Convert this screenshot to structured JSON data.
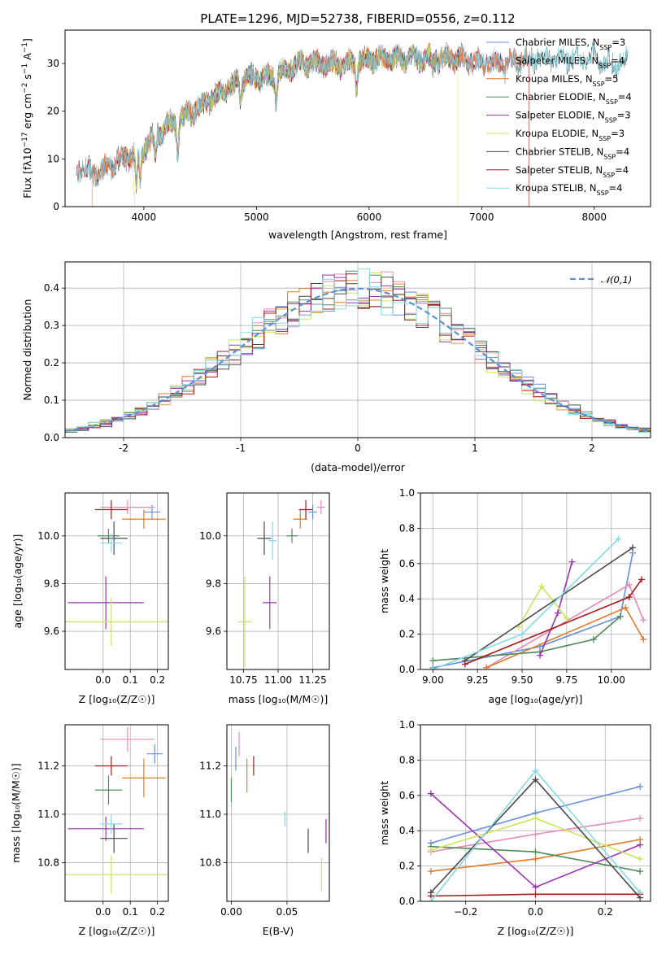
{
  "figure": {
    "title": "PLATE=1296, MJD=52738, FIBERID=0556, z=0.112"
  },
  "colors": {
    "Chabrier MILES": "#6a8fd8",
    "Salpeter MILES": "#e68ab8",
    "Kroupa MILES": "#e07b28",
    "Chabrier ELODIE": "#4f8a5a",
    "Salpeter ELODIE": "#9b35b0",
    "Kroupa ELODIE": "#cde35a",
    "Chabrier STELIB": "#4a4a4a",
    "Salpeter STELIB": "#a8191b",
    "Kroupa STELIB": "#86d9e3"
  },
  "chart_data": [
    {
      "id": "spectrum",
      "type": "line",
      "title": "PLATE=1296, MJD=52738, FIBERID=0556, z=0.112",
      "xlabel": "wavelength [Angstrom, rest frame]",
      "ylabel": "Flux [fλ10⁻¹⁷ erg cm⁻² s⁻¹ A⁻¹]",
      "xlim": [
        3300,
        8500
      ],
      "ylim": [
        0,
        37
      ],
      "xticks": [
        4000,
        5000,
        6000,
        7000,
        8000
      ],
      "yticks": [
        0,
        10,
        20,
        30
      ],
      "grid": false,
      "legend_position": "right",
      "legend": [
        {
          "label": "Chabrier MILES, N",
          "sub": "SSP",
          "tail": "=3"
        },
        {
          "label": "Salpeter MILES, N",
          "sub": "SSP",
          "tail": "=4"
        },
        {
          "label": "Kroupa MILES, N",
          "sub": "SSP",
          "tail": "=5"
        },
        {
          "label": "Chabrier ELODIE, N",
          "sub": "SSP",
          "tail": "=4"
        },
        {
          "label": "Salpeter ELODIE, N",
          "sub": "SSP",
          "tail": "=3"
        },
        {
          "label": "Kroupa ELODIE, N",
          "sub": "SSP",
          "tail": "=3"
        },
        {
          "label": "Chabrier STELIB, N",
          "sub": "SSP",
          "tail": "=4"
        },
        {
          "label": "Salpeter STELIB, N",
          "sub": "SSP",
          "tail": "=4"
        },
        {
          "label": "Kroupa STELIB, N",
          "sub": "SSP",
          "tail": "=4"
        }
      ],
      "continuum_points": [
        [
          3400,
          8
        ],
        [
          3600,
          7
        ],
        [
          3800,
          10
        ],
        [
          3950,
          11
        ],
        [
          4100,
          15
        ],
        [
          4300,
          18
        ],
        [
          4500,
          21
        ],
        [
          4700,
          24
        ],
        [
          4900,
          27
        ],
        [
          5100,
          27
        ],
        [
          5200,
          28
        ],
        [
          5400,
          30
        ],
        [
          5600,
          30
        ],
        [
          5800,
          30
        ],
        [
          6000,
          31
        ],
        [
          6200,
          31
        ],
        [
          6400,
          31
        ],
        [
          6600,
          31
        ],
        [
          6800,
          31
        ],
        [
          7000,
          30
        ],
        [
          7200,
          30
        ],
        [
          7400,
          31
        ],
        [
          7600,
          31
        ],
        [
          7800,
          31
        ],
        [
          8000,
          31
        ],
        [
          8200,
          30
        ],
        [
          8300,
          31
        ]
      ],
      "absorption_features": [
        [
          3934,
          7
        ],
        [
          3968,
          6
        ],
        [
          4102,
          5
        ],
        [
          4300,
          6
        ],
        [
          4861,
          4
        ],
        [
          5175,
          5
        ],
        [
          5890,
          5
        ],
        [
          6563,
          2
        ],
        [
          7200,
          2
        ]
      ],
      "series_ranges": {
        "Chabrier MILES": [
          3540,
          7400
        ],
        "Salpeter MILES": [
          3540,
          7400
        ],
        "Kroupa MILES": [
          3540,
          7400
        ],
        "Chabrier ELODIE": [
          3900,
          6800
        ],
        "Salpeter ELODIE": [
          3900,
          6800
        ],
        "Kroupa ELODIE": [
          3900,
          6800
        ],
        "Chabrier STELIB": [
          3400,
          8300
        ],
        "Salpeter STELIB": [
          3400,
          8300
        ],
        "Kroupa STELIB": [
          3400,
          8300
        ]
      },
      "edge_drops": [
        {
          "series": "Kroupa MILES",
          "x": 3540
        },
        {
          "series": "Kroupa ELODIE",
          "x": 3920
        },
        {
          "series": "Kroupa ELODIE",
          "x": 6790
        },
        {
          "series": "Salpeter STELIB",
          "x": 7420
        }
      ]
    },
    {
      "id": "residuals",
      "type": "line",
      "xlabel": "(data-model)/error",
      "ylabel": "Normed distribution",
      "xlim": [
        -2.5,
        2.5
      ],
      "ylim": [
        0,
        0.47
      ],
      "xticks": [
        -2,
        -1,
        0,
        1,
        2
      ],
      "yticks": [
        0.0,
        0.1,
        0.2,
        0.3,
        0.4
      ],
      "grid": true,
      "legend_position": "upper right",
      "legend": [
        {
          "label": "𝒩(0,1)"
        }
      ],
      "bin_edges": [
        -2.5,
        -2.4,
        -2.3,
        -2.2,
        -2.1,
        -2.0,
        -1.9,
        -1.8,
        -1.7,
        -1.6,
        -1.5,
        -1.4,
        -1.3,
        -1.2,
        -1.1,
        -1.0,
        -0.9,
        -0.8,
        -0.7,
        -0.6,
        -0.5,
        -0.4,
        -0.3,
        -0.2,
        -0.1,
        0.0,
        0.1,
        0.2,
        0.3,
        0.4,
        0.5,
        0.6,
        0.7,
        0.8,
        0.9,
        1.0,
        1.1,
        1.2,
        1.3,
        1.4,
        1.5,
        1.6,
        1.7,
        1.8,
        1.9,
        2.0,
        2.1,
        2.2,
        2.3,
        2.4,
        2.5
      ],
      "reference_curve": "normal pdf mean 0, sd 1"
    },
    {
      "id": "age-vs-Z",
      "type": "scatter",
      "xlabel": "Z [log₁₀(Z/Z☉)]",
      "ylabel": "age  [log₁₀(age/yr)]",
      "xlim": [
        -0.14,
        0.24
      ],
      "ylim": [
        9.44,
        10.18
      ],
      "xticks": [
        0.0,
        0.1,
        0.2
      ],
      "xticklabels": [
        "0.0",
        "0.1",
        "0.2"
      ],
      "yticks": [
        9.6,
        9.8,
        10.0
      ],
      "grid": true,
      "points": [
        {
          "series": "Chabrier MILES",
          "x": 0.18,
          "y": 10.1,
          "xerr": 0.03,
          "yerr": 0.03
        },
        {
          "series": "Salpeter MILES",
          "x": 0.09,
          "y": 10.12,
          "xerr": 0.1,
          "yerr": 0.03
        },
        {
          "series": "Kroupa MILES",
          "x": 0.15,
          "y": 10.07,
          "xerr": 0.08,
          "yerr": 0.04
        },
        {
          "series": "Chabrier ELODIE",
          "x": 0.02,
          "y": 10.0,
          "xerr": 0.04,
          "yerr": 0.03
        },
        {
          "series": "Salpeter ELODIE",
          "x": 0.01,
          "y": 9.72,
          "xerr": 0.14,
          "yerr": 0.11
        },
        {
          "series": "Kroupa ELODIE",
          "x": 0.03,
          "y": 9.64,
          "xerr": 0.21,
          "yerr": 0.1
        },
        {
          "series": "Chabrier STELIB",
          "x": 0.04,
          "y": 9.99,
          "xerr": 0.05,
          "yerr": 0.07
        },
        {
          "series": "Salpeter STELIB",
          "x": 0.03,
          "y": 10.11,
          "xerr": 0.06,
          "yerr": 0.04
        },
        {
          "series": "Kroupa STELIB",
          "x": 0.03,
          "y": 9.97,
          "xerr": 0.04,
          "yerr": 0.04
        }
      ]
    },
    {
      "id": "age-vs-mass",
      "type": "scatter",
      "xlabel": "mass [log₁₀(M/M☉)]",
      "ylabel": "",
      "xlim": [
        10.63,
        11.37
      ],
      "ylim": [
        9.44,
        10.18
      ],
      "xticks": [
        10.75,
        11.0,
        11.25
      ],
      "xticklabels": [
        "10.75",
        "11.00",
        "11.25"
      ],
      "yticks": [
        9.6,
        9.8,
        10.0
      ],
      "grid": true,
      "points": [
        {
          "series": "Chabrier MILES",
          "x": 11.25,
          "y": 10.1,
          "xerr": 0.03,
          "yerr": 0.03
        },
        {
          "series": "Salpeter MILES",
          "x": 11.31,
          "y": 10.12,
          "xerr": 0.03,
          "yerr": 0.03
        },
        {
          "series": "Kroupa MILES",
          "x": 11.16,
          "y": 10.07,
          "xerr": 0.05,
          "yerr": 0.04
        },
        {
          "series": "Chabrier ELODIE",
          "x": 11.1,
          "y": 10.0,
          "xerr": 0.04,
          "yerr": 0.03
        },
        {
          "series": "Salpeter ELODIE",
          "x": 10.94,
          "y": 9.72,
          "xerr": 0.05,
          "yerr": 0.11
        },
        {
          "series": "Kroupa ELODIE",
          "x": 10.76,
          "y": 9.64,
          "xerr": 0.05,
          "yerr": 0.19
        },
        {
          "series": "Chabrier STELIB",
          "x": 10.9,
          "y": 9.99,
          "xerr": 0.05,
          "yerr": 0.07
        },
        {
          "series": "Salpeter STELIB",
          "x": 11.2,
          "y": 10.11,
          "xerr": 0.05,
          "yerr": 0.04
        },
        {
          "series": "Kroupa STELIB",
          "x": 10.96,
          "y": 9.98,
          "xerr": 0.03,
          "yerr": 0.08
        }
      ]
    },
    {
      "id": "weights-vs-age",
      "type": "line",
      "xlabel": "age  [log₁₀(age/yr)]",
      "ylabel": "mass weight",
      "xlim": [
        8.93,
        10.22
      ],
      "ylim": [
        0.0,
        1.0
      ],
      "xticks": [
        9.0,
        9.25,
        9.5,
        9.75,
        10.0
      ],
      "xticklabels": [
        "9.00",
        "9.25",
        "9.50",
        "9.75",
        "10.00"
      ],
      "yticks": [
        0.0,
        0.2,
        0.4,
        0.6,
        0.8,
        1.0
      ],
      "grid": true,
      "series": [
        {
          "series": "Chabrier MILES",
          "x": [
            9.0,
            9.6,
            10.05,
            10.12
          ],
          "y": [
            0.01,
            0.13,
            0.3,
            0.66
          ]
        },
        {
          "series": "Salpeter MILES",
          "x": [
            9.3,
            10.1,
            10.18
          ],
          "y": [
            0.01,
            0.48,
            0.28
          ]
        },
        {
          "series": "Kroupa MILES",
          "x": [
            9.3,
            10.08,
            10.18
          ],
          "y": [
            0.01,
            0.35,
            0.17
          ]
        },
        {
          "series": "Chabrier ELODIE",
          "x": [
            9.0,
            9.6,
            9.9,
            10.05
          ],
          "y": [
            0.05,
            0.1,
            0.17,
            0.3
          ]
        },
        {
          "series": "Salpeter ELODIE",
          "x": [
            9.6,
            9.7,
            9.78
          ],
          "y": [
            0.08,
            0.32,
            0.61
          ]
        },
        {
          "series": "Kroupa ELODIE",
          "x": [
            9.48,
            9.61,
            9.75
          ],
          "y": [
            0.24,
            0.47,
            0.29
          ]
        },
        {
          "series": "Chabrier STELIB",
          "x": [
            9.18,
            10.12
          ],
          "y": [
            0.05,
            0.69
          ]
        },
        {
          "series": "Salpeter STELIB",
          "x": [
            9.18,
            10.1,
            10.17
          ],
          "y": [
            0.03,
            0.41,
            0.51
          ]
        },
        {
          "series": "Kroupa STELIB",
          "x": [
            9.0,
            9.5,
            10.04
          ],
          "y": [
            0.0,
            0.2,
            0.74
          ]
        }
      ]
    },
    {
      "id": "mass-vs-Z",
      "type": "scatter",
      "xlabel": "Z [log₁₀(Z/Z☉)]",
      "ylabel": "mass [log₁₀(M/M☉)]",
      "xlim": [
        -0.14,
        0.24
      ],
      "ylim": [
        10.64,
        11.37
      ],
      "xticks": [
        0.0,
        0.1,
        0.2
      ],
      "xticklabels": [
        "0.0",
        "0.1",
        "0.2"
      ],
      "yticks": [
        10.8,
        11.0,
        11.2
      ],
      "grid": true,
      "points": [
        {
          "series": "Chabrier MILES",
          "x": 0.19,
          "y": 11.25,
          "xerr": 0.03,
          "yerr": 0.04
        },
        {
          "series": "Salpeter MILES",
          "x": 0.09,
          "y": 11.31,
          "xerr": 0.1,
          "yerr": 0.05
        },
        {
          "series": "Kroupa MILES",
          "x": 0.15,
          "y": 11.15,
          "xerr": 0.08,
          "yerr": 0.08
        },
        {
          "series": "Chabrier ELODIE",
          "x": 0.02,
          "y": 11.1,
          "xerr": 0.05,
          "yerr": 0.06
        },
        {
          "series": "Salpeter ELODIE",
          "x": 0.01,
          "y": 10.94,
          "xerr": 0.14,
          "yerr": 0.05
        },
        {
          "series": "Kroupa ELODIE",
          "x": 0.03,
          "y": 10.75,
          "xerr": 0.21,
          "yerr": 0.08
        },
        {
          "series": "Chabrier STELIB",
          "x": 0.04,
          "y": 10.9,
          "xerr": 0.05,
          "yerr": 0.06
        },
        {
          "series": "Salpeter STELIB",
          "x": 0.03,
          "y": 11.2,
          "xerr": 0.06,
          "yerr": 0.04
        },
        {
          "series": "Kroupa STELIB",
          "x": 0.03,
          "y": 10.96,
          "xerr": 0.04,
          "yerr": 0.04
        }
      ]
    },
    {
      "id": "mass-vs-ebv",
      "type": "scatter",
      "xlabel": "E(B-V)",
      "ylabel": "",
      "xlim": [
        -0.004,
        0.088
      ],
      "ylim": [
        10.64,
        11.37
      ],
      "xticks": [
        0.0,
        0.05
      ],
      "xticklabels": [
        "0.00",
        "0.05"
      ],
      "yticks": [
        10.8,
        11.0,
        11.2
      ],
      "grid": true,
      "points": [
        {
          "series": "Chabrier MILES",
          "x": 0.004,
          "y": 11.23,
          "xerr": 0.0,
          "yerr": 0.05
        },
        {
          "series": "Salpeter MILES",
          "x": 0.007,
          "y": 11.29,
          "xerr": 0.0,
          "yerr": 0.05
        },
        {
          "series": "Kroupa MILES",
          "x": 0.014,
          "y": 11.16,
          "xerr": 0.0,
          "yerr": 0.07
        },
        {
          "series": "Chabrier ELODIE",
          "x": 0.0,
          "y": 11.1,
          "xerr": 0.0,
          "yerr": 0.05
        },
        {
          "series": "Salpeter ELODIE",
          "x": 0.085,
          "y": 10.93,
          "xerr": 0.0,
          "yerr": 0.05
        },
        {
          "series": "Kroupa ELODIE",
          "x": 0.081,
          "y": 10.75,
          "xerr": 0.0,
          "yerr": 0.07
        },
        {
          "series": "Chabrier STELIB",
          "x": 0.069,
          "y": 10.89,
          "xerr": 0.0,
          "yerr": 0.05
        },
        {
          "series": "Salpeter STELIB",
          "x": 0.02,
          "y": 11.2,
          "xerr": 0.0,
          "yerr": 0.04
        },
        {
          "series": "Kroupa STELIB",
          "x": 0.048,
          "y": 10.98,
          "xerr": 0.0,
          "yerr": 0.03
        }
      ]
    },
    {
      "id": "weights-vs-Z",
      "type": "line",
      "xlabel": "Z [log₁₀(Z/Z☉)]",
      "ylabel": "mass weight",
      "xlim": [
        -0.33,
        0.33
      ],
      "ylim": [
        0.0,
        1.0
      ],
      "xticks": [
        -0.2,
        0.0,
        0.2
      ],
      "xticklabels": [
        "−0.2",
        "0.0",
        "0.2"
      ],
      "yticks": [
        0.0,
        0.2,
        0.4,
        0.6,
        0.8,
        1.0
      ],
      "grid": true,
      "series": [
        {
          "series": "Chabrier MILES",
          "x": [
            -0.3,
            0.0,
            0.3
          ],
          "y": [
            0.33,
            0.5,
            0.65
          ]
        },
        {
          "series": "Salpeter MILES",
          "x": [
            -0.3,
            0.0,
            0.3
          ],
          "y": [
            0.28,
            0.38,
            0.47
          ]
        },
        {
          "series": "Kroupa MILES",
          "x": [
            -0.3,
            0.0,
            0.3
          ],
          "y": [
            0.17,
            0.24,
            0.35
          ]
        },
        {
          "series": "Chabrier ELODIE",
          "x": [
            -0.3,
            0.0,
            0.3
          ],
          "y": [
            0.31,
            0.28,
            0.17
          ]
        },
        {
          "series": "Salpeter ELODIE",
          "x": [
            -0.3,
            0.0,
            0.3
          ],
          "y": [
            0.61,
            0.08,
            0.32
          ]
        },
        {
          "series": "Kroupa ELODIE",
          "x": [
            -0.3,
            0.0,
            0.3
          ],
          "y": [
            0.29,
            0.47,
            0.24
          ]
        },
        {
          "series": "Chabrier STELIB",
          "x": [
            -0.3,
            0.0,
            0.3
          ],
          "y": [
            0.05,
            0.69,
            0.02
          ]
        },
        {
          "series": "Salpeter STELIB",
          "x": [
            -0.3,
            0.0,
            0.3
          ],
          "y": [
            0.03,
            0.04,
            0.04
          ]
        },
        {
          "series": "Kroupa STELIB",
          "x": [
            -0.3,
            0.0,
            0.3
          ],
          "y": [
            0.0,
            0.74,
            0.05
          ]
        }
      ]
    }
  ]
}
